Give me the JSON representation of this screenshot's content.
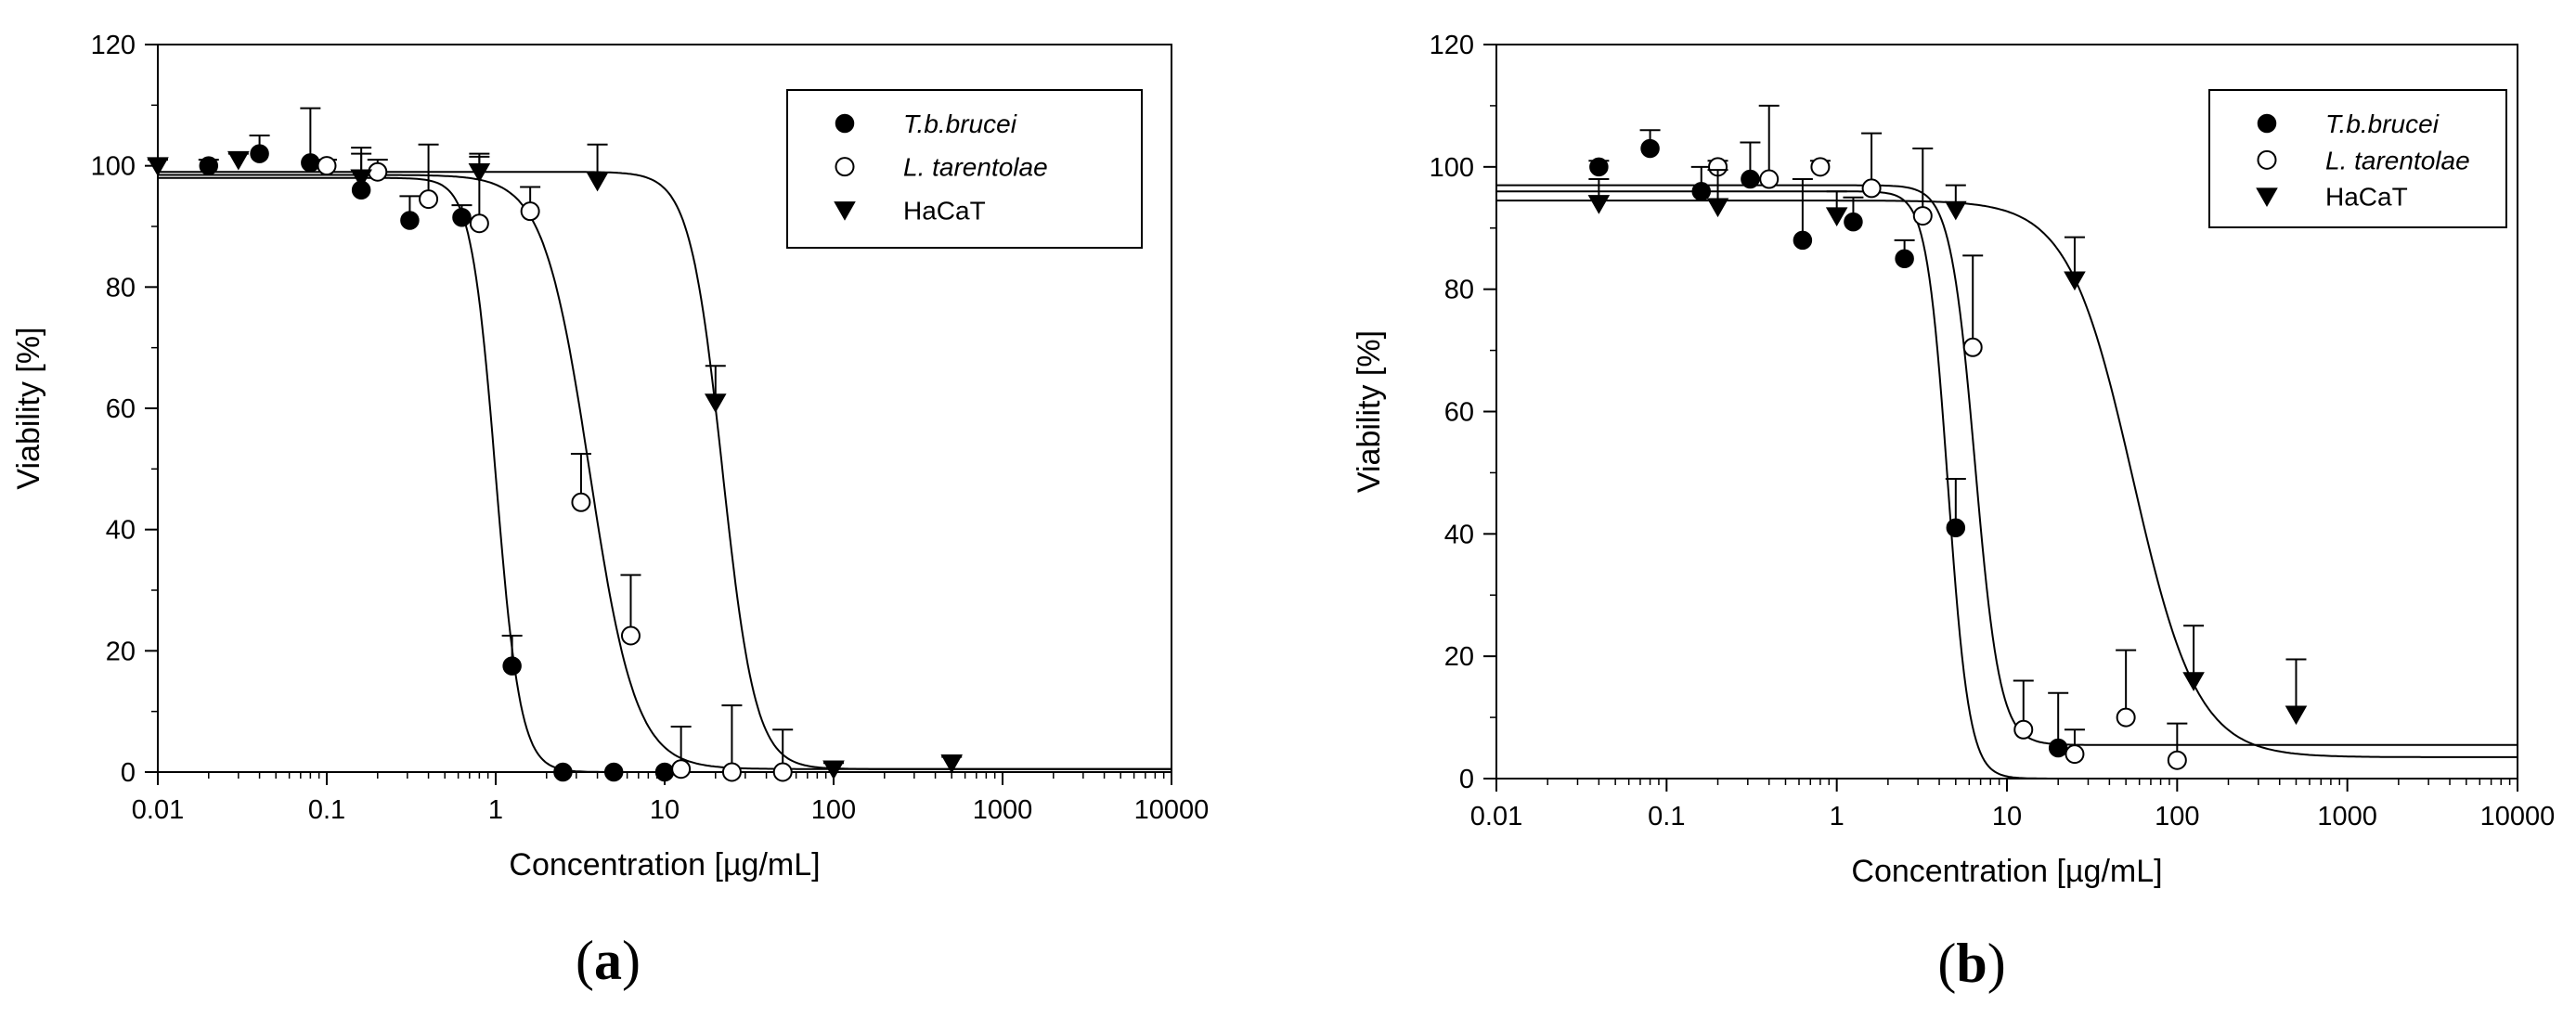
{
  "chart_data": [
    {
      "type": "scatter",
      "panel_label": "(a)",
      "panel_letter": "a",
      "xlabel": "Concentration [µg/mL]",
      "ylabel": "Viability [%]",
      "xscale": "log",
      "xlim": [
        0.01,
        10000
      ],
      "ylim": [
        0,
        120
      ],
      "x_ticks": [
        "0.01",
        "0.1",
        "1",
        "10",
        "100",
        "1000",
        "10000"
      ],
      "y_ticks": [
        "0",
        "20",
        "40",
        "60",
        "80",
        "100",
        "120"
      ],
      "legend_position": "top-right",
      "grid": false,
      "series": [
        {
          "name": "T.b.brucei",
          "marker": "filled-circle",
          "fit": {
            "top": 98,
            "bottom": 0,
            "ic50": 1.0,
            "hill": 6
          },
          "points": [
            {
              "x": 0.02,
              "y": 100,
              "err": 1
            },
            {
              "x": 0.04,
              "y": 102,
              "err": 3
            },
            {
              "x": 0.08,
              "y": 100.5,
              "err": 9
            },
            {
              "x": 0.16,
              "y": 96,
              "err": 7
            },
            {
              "x": 0.31,
              "y": 91,
              "err": 4
            },
            {
              "x": 0.63,
              "y": 91.5,
              "err": 2
            },
            {
              "x": 1.25,
              "y": 17.5,
              "err": 5
            },
            {
              "x": 2.5,
              "y": 0,
              "err": 0
            },
            {
              "x": 5,
              "y": 0,
              "err": 0
            },
            {
              "x": 10,
              "y": 0,
              "err": 0
            }
          ]
        },
        {
          "name": "L. tarentolae",
          "italic": true,
          "marker": "open-circle",
          "fit": {
            "top": 98.5,
            "bottom": 0.5,
            "ic50": 3.6,
            "hill": 3.2
          },
          "points": [
            {
              "x": 0.1,
              "y": 100,
              "err": 1
            },
            {
              "x": 0.2,
              "y": 99,
              "err": 2
            },
            {
              "x": 0.4,
              "y": 94.5,
              "err": 9
            },
            {
              "x": 0.8,
              "y": 90.5,
              "err": 11
            },
            {
              "x": 1.6,
              "y": 92.5,
              "err": 4
            },
            {
              "x": 3.2,
              "y": 44.5,
              "err": 8
            },
            {
              "x": 6.3,
              "y": 22.5,
              "err": 10
            },
            {
              "x": 12.5,
              "y": 0.5,
              "err": 7
            },
            {
              "x": 25,
              "y": 0,
              "err": 11
            },
            {
              "x": 50,
              "y": 0,
              "err": 7
            }
          ]
        },
        {
          "name": "HaCaT",
          "marker": "filled-triangle-down",
          "fit": {
            "top": 99,
            "bottom": 0.5,
            "ic50": 22,
            "hill": 4.5
          },
          "points": [
            {
              "x": 0.01,
              "y": 100,
              "err": 1
            },
            {
              "x": 0.03,
              "y": 101,
              "err": 1
            },
            {
              "x": 0.16,
              "y": 98,
              "err": 4
            },
            {
              "x": 0.8,
              "y": 99,
              "err": 3
            },
            {
              "x": 4,
              "y": 97.5,
              "err": 6
            },
            {
              "x": 20,
              "y": 61,
              "err": 6
            },
            {
              "x": 100,
              "y": 0.5,
              "err": 1
            },
            {
              "x": 500,
              "y": 1.5,
              "err": 1
            }
          ]
        }
      ]
    },
    {
      "type": "scatter",
      "panel_label": "(b)",
      "panel_letter": "b",
      "xlabel": "Concentration [µg/mL]",
      "ylabel": "Viability [%]",
      "xscale": "log",
      "xlim": [
        0.01,
        10000
      ],
      "ylim": [
        0,
        120
      ],
      "x_ticks": [
        "0.01",
        "0.1",
        "1",
        "10",
        "100",
        "1000",
        "10000"
      ],
      "y_ticks": [
        "0",
        "20",
        "40",
        "60",
        "80",
        "100",
        "120"
      ],
      "legend_position": "top-right",
      "grid": false,
      "series": [
        {
          "name": "T.b.brucei",
          "marker": "filled-circle",
          "fit": {
            "top": 96,
            "bottom": 0,
            "ic50": 4.5,
            "hill": 7
          },
          "points": [
            {
              "x": 0.04,
              "y": 100,
              "err": 1
            },
            {
              "x": 0.08,
              "y": 103,
              "err": 3
            },
            {
              "x": 0.16,
              "y": 96,
              "err": 4
            },
            {
              "x": 0.31,
              "y": 98,
              "err": 6
            },
            {
              "x": 0.63,
              "y": 88,
              "err": 10
            },
            {
              "x": 1.25,
              "y": 91,
              "err": 4
            },
            {
              "x": 2.5,
              "y": 85,
              "err": 3
            },
            {
              "x": 5,
              "y": 41,
              "err": 8
            },
            {
              "x": 20,
              "y": 5,
              "err": 9
            }
          ]
        },
        {
          "name": "L. tarentolae",
          "italic": true,
          "marker": "open-circle",
          "fit": {
            "top": 97,
            "bottom": 5.5,
            "ic50": 6.5,
            "hill": 6
          },
          "points": [
            {
              "x": 0.2,
              "y": 100,
              "err": 1
            },
            {
              "x": 0.4,
              "y": 98,
              "err": 12
            },
            {
              "x": 0.8,
              "y": 100,
              "err": 1
            },
            {
              "x": 1.6,
              "y": 96.5,
              "err": 9
            },
            {
              "x": 3.2,
              "y": 92,
              "err": 11
            },
            {
              "x": 6.3,
              "y": 70.5,
              "err": 15
            },
            {
              "x": 12.5,
              "y": 8,
              "err": 8
            },
            {
              "x": 25,
              "y": 4,
              "err": 4
            },
            {
              "x": 50,
              "y": 10,
              "err": 11
            },
            {
              "x": 100,
              "y": 3,
              "err": 6
            }
          ]
        },
        {
          "name": "HaCaT",
          "marker": "filled-triangle-down",
          "fit": {
            "top": 94.5,
            "bottom": 3.5,
            "ic50": 55,
            "hill": 2.3
          },
          "points": [
            {
              "x": 0.04,
              "y": 94,
              "err": 4
            },
            {
              "x": 0.2,
              "y": 93.5,
              "err": 6
            },
            {
              "x": 1,
              "y": 92,
              "err": 4
            },
            {
              "x": 5,
              "y": 93,
              "err": 4
            },
            {
              "x": 25,
              "y": 81.5,
              "err": 7
            },
            {
              "x": 125,
              "y": 16,
              "err": 9
            },
            {
              "x": 500,
              "y": 10.5,
              "err": 9
            }
          ]
        }
      ]
    }
  ]
}
